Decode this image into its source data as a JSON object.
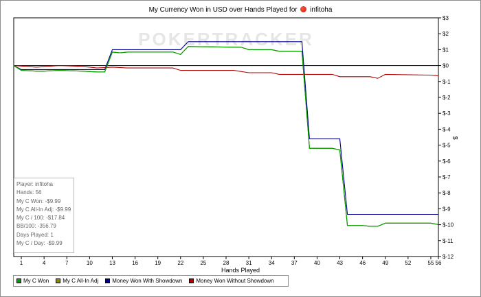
{
  "title_prefix": "My Currency Won in USD over Hands Played for",
  "title_player": "infitoha",
  "watermark": "POKERTRACKER",
  "stats": [
    "Player: infitoha",
    "Hands: 56",
    "My C Won: -$9.99",
    "My C All-In Adj: -$9.99",
    "My C / 100: -$17.84",
    "BB/100: -356.79",
    "Days Played: 1",
    "My C / Day: -$9.99"
  ],
  "colors": {
    "my_c_won": "#00a000",
    "all_in_adj": "#8a8a00",
    "showdown": "#000090",
    "without_showdown": "#b00000",
    "zero_line": "#000000"
  },
  "chart_data": {
    "type": "line",
    "title": "My Currency Won in USD over Hands Played for infitoha",
    "xlabel": "Hands Played",
    "ylabel": "$",
    "xlim": [
      0,
      56
    ],
    "ylim": [
      -12,
      3
    ],
    "x_ticks": [
      1,
      4,
      7,
      10,
      13,
      16,
      19,
      22,
      25,
      28,
      31,
      34,
      37,
      40,
      43,
      46,
      49,
      52,
      55,
      56
    ],
    "y_ticks": [
      3,
      2,
      1,
      0,
      -1,
      -2,
      -3,
      -4,
      -5,
      -6,
      -7,
      -8,
      -9,
      -10,
      -11,
      -12
    ],
    "y_tick_labels": [
      "$3",
      "$2",
      "$1",
      "$0",
      "$-1",
      "$-2",
      "$-3",
      "$-4",
      "$-5",
      "$-6",
      "$-7",
      "$-8",
      "$-9",
      "$-10",
      "$-11",
      "$-12"
    ],
    "grid": false,
    "legend_position": "bottom",
    "series": [
      {
        "name": "My C Won",
        "color_key": "my_c_won",
        "points": [
          [
            0,
            0
          ],
          [
            1,
            -0.3
          ],
          [
            3,
            -0.35
          ],
          [
            4,
            -0.35
          ],
          [
            6,
            -0.3
          ],
          [
            9,
            -0.35
          ],
          [
            11,
            -0.4
          ],
          [
            12,
            -0.4
          ],
          [
            13,
            0.85
          ],
          [
            14,
            0.8
          ],
          [
            15,
            0.85
          ],
          [
            21,
            0.85
          ],
          [
            22,
            0.7
          ],
          [
            23,
            1.2
          ],
          [
            30,
            1.15
          ],
          [
            31,
            1.0
          ],
          [
            34,
            1.0
          ],
          [
            35,
            0.9
          ],
          [
            38,
            0.9
          ],
          [
            39,
            -5.2
          ],
          [
            42,
            -5.2
          ],
          [
            43,
            -5.3
          ],
          [
            44,
            -10.05
          ],
          [
            46,
            -10.05
          ],
          [
            47,
            -10.1
          ],
          [
            48,
            -10.1
          ],
          [
            49,
            -9.9
          ],
          [
            52,
            -9.9
          ],
          [
            55,
            -9.9
          ],
          [
            56,
            -9.99
          ]
        ]
      },
      {
        "name": "My C All-In Adj",
        "color_key": "all_in_adj",
        "points": [
          [
            0,
            0
          ],
          [
            1,
            -0.3
          ],
          [
            3,
            -0.35
          ],
          [
            4,
            -0.35
          ],
          [
            6,
            -0.3
          ],
          [
            9,
            -0.35
          ],
          [
            11,
            -0.4
          ],
          [
            12,
            -0.4
          ],
          [
            13,
            0.85
          ],
          [
            14,
            0.8
          ],
          [
            15,
            0.85
          ],
          [
            21,
            0.85
          ],
          [
            22,
            0.7
          ],
          [
            23,
            1.2
          ],
          [
            30,
            1.15
          ],
          [
            31,
            1.0
          ],
          [
            34,
            1.0
          ],
          [
            35,
            0.9
          ],
          [
            38,
            0.9
          ],
          [
            39,
            -5.2
          ],
          [
            42,
            -5.2
          ],
          [
            43,
            -5.3
          ],
          [
            44,
            -10.05
          ],
          [
            46,
            -10.05
          ],
          [
            47,
            -10.1
          ],
          [
            48,
            -10.1
          ],
          [
            49,
            -9.9
          ],
          [
            52,
            -9.9
          ],
          [
            55,
            -9.9
          ],
          [
            56,
            -9.99
          ]
        ]
      },
      {
        "name": "Money Won With Showdown",
        "color_key": "showdown",
        "points": [
          [
            0,
            0
          ],
          [
            1,
            -0.25
          ],
          [
            12,
            -0.25
          ],
          [
            13,
            1.0
          ],
          [
            22,
            1.0
          ],
          [
            23,
            1.5
          ],
          [
            38,
            1.5
          ],
          [
            39,
            -4.6
          ],
          [
            43,
            -4.6
          ],
          [
            44,
            -9.35
          ],
          [
            56,
            -9.35
          ]
        ]
      },
      {
        "name": "Money Won Without Showdown",
        "color_key": "without_showdown",
        "points": [
          [
            0,
            0
          ],
          [
            3,
            -0.1
          ],
          [
            6,
            0
          ],
          [
            9,
            -0.05
          ],
          [
            11,
            -0.15
          ],
          [
            13,
            -0.1
          ],
          [
            15,
            -0.15
          ],
          [
            21,
            -0.15
          ],
          [
            22,
            -0.3
          ],
          [
            29,
            -0.3
          ],
          [
            31,
            -0.45
          ],
          [
            34,
            -0.45
          ],
          [
            35,
            -0.55
          ],
          [
            42,
            -0.55
          ],
          [
            43,
            -0.7
          ],
          [
            47,
            -0.7
          ],
          [
            48,
            -0.8
          ],
          [
            49,
            -0.55
          ],
          [
            55,
            -0.6
          ],
          [
            56,
            -0.65
          ]
        ]
      }
    ]
  }
}
